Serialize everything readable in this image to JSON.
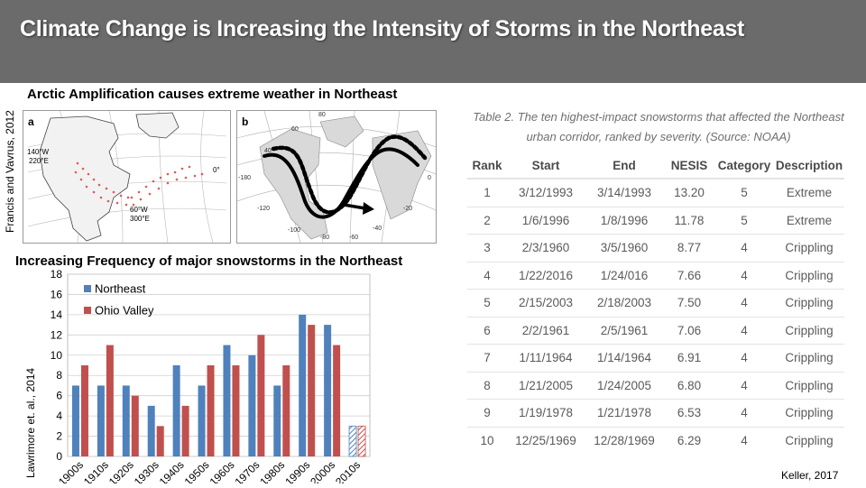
{
  "slide": {
    "title": "Climate Change is Increasing the Intensity of Storms in the Northeast",
    "subtitle_arctic": "Arctic Amplification causes extreme weather in Northeast",
    "subtitle_snow": "Increasing Frequency of major snowstorms in the Northeast",
    "cite_francis": "Francis and Vavrus, 2012",
    "cite_lawrimore": "Lawrimore et. al., 2014",
    "cite_keller": "Keller, 2017"
  },
  "map_a": {
    "panel_label": "a",
    "label_140w": "140°W",
    "label_220e": "220°E",
    "label_60w": "60°W",
    "label_300e": "300°E",
    "label_0": "0°"
  },
  "map_b": {
    "panel_label": "b",
    "tick_80": "80",
    "tick_60": "60",
    "tick_40": "40",
    "tick_m180": "-180",
    "tick_m120": "-120",
    "tick_m100": "-100",
    "tick_m80": "-80",
    "tick_m60": "-60",
    "tick_m40": "-40",
    "tick_m20": "-20",
    "tick_0": "0"
  },
  "chart_data": {
    "type": "bar",
    "categories": [
      "1900s",
      "1910s",
      "1920s",
      "1930s",
      "1940s",
      "1950s",
      "1960s",
      "1970s",
      "1980s",
      "1990s",
      "2000s",
      "2010s"
    ],
    "series": [
      {
        "name": "Northeast",
        "values": [
          7,
          7,
          7,
          5,
          9,
          7,
          11,
          10,
          7,
          14,
          13,
          3
        ],
        "color": "#4f81bd"
      },
      {
        "name": "Ohio Valley",
        "values": [
          9,
          11,
          6,
          3,
          5,
          9,
          9,
          12,
          9,
          13,
          11,
          3
        ],
        "color": "#c0504d"
      }
    ],
    "partial_decade": "2010s",
    "ylim": [
      0,
      18
    ],
    "yticks": [
      0,
      2,
      4,
      6,
      8,
      10,
      12,
      14,
      16,
      18
    ],
    "grid": true,
    "legend_position": "top-left"
  },
  "storm_table": {
    "caption_line1": "Table 2. The ten highest-impact snowstorms that affected the Northeast",
    "caption_line2": "urban corridor, ranked by severity. (Source: NOAA)",
    "headers": [
      "Rank",
      "Start",
      "End",
      "NESIS",
      "Category",
      "Description"
    ],
    "rows": [
      [
        "1",
        "3/12/1993",
        "3/14/1993",
        "13.20",
        "5",
        "Extreme"
      ],
      [
        "2",
        "1/6/1996",
        "1/8/1996",
        "11.78",
        "5",
        "Extreme"
      ],
      [
        "3",
        "2/3/1960",
        "3/5/1960",
        "8.77",
        "4",
        "Crippling"
      ],
      [
        "4",
        "1/22/2016",
        "1/24/016",
        "7.66",
        "4",
        "Crippling"
      ],
      [
        "5",
        "2/15/2003",
        "2/18/2003",
        "7.50",
        "4",
        "Crippling"
      ],
      [
        "6",
        "2/2/1961",
        "2/5/1961",
        "7.06",
        "4",
        "Crippling"
      ],
      [
        "7",
        "1/11/1964",
        "1/14/1964",
        "6.91",
        "4",
        "Crippling"
      ],
      [
        "8",
        "1/21/2005",
        "1/24/2005",
        "6.80",
        "4",
        "Crippling"
      ],
      [
        "9",
        "1/19/1978",
        "1/21/1978",
        "6.53",
        "4",
        "Crippling"
      ],
      [
        "10",
        "12/25/1969",
        "12/28/1969",
        "6.29",
        "4",
        "Crippling"
      ]
    ]
  }
}
